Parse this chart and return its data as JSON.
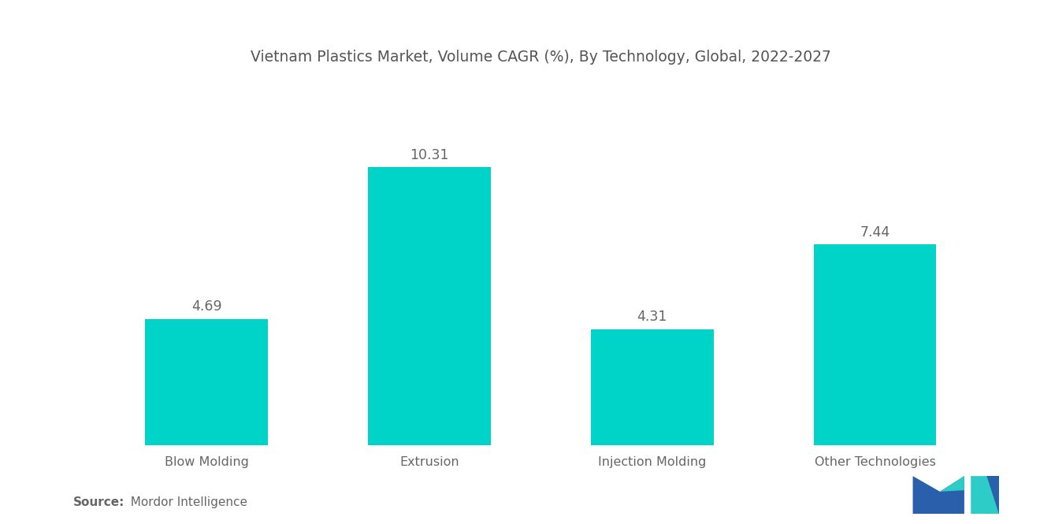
{
  "title": "Vietnam Plastics Market, Volume CAGR (%), By Technology, Global, 2022-2027",
  "categories": [
    "Blow Molding",
    "Extrusion",
    "Injection Molding",
    "Other Technologies"
  ],
  "values": [
    4.69,
    10.31,
    4.31,
    7.44
  ],
  "bar_color": "#00D4C8",
  "label_color": "#666666",
  "title_color": "#555555",
  "background_color": "#ffffff",
  "source_bold": "Source:",
  "source_normal": "  Mordor Intelligence",
  "ylim": [
    0,
    13
  ],
  "bar_width": 0.55,
  "title_fontsize": 13.5,
  "value_fontsize": 12.5,
  "source_fontsize": 11,
  "xlabel_fontsize": 11.5
}
